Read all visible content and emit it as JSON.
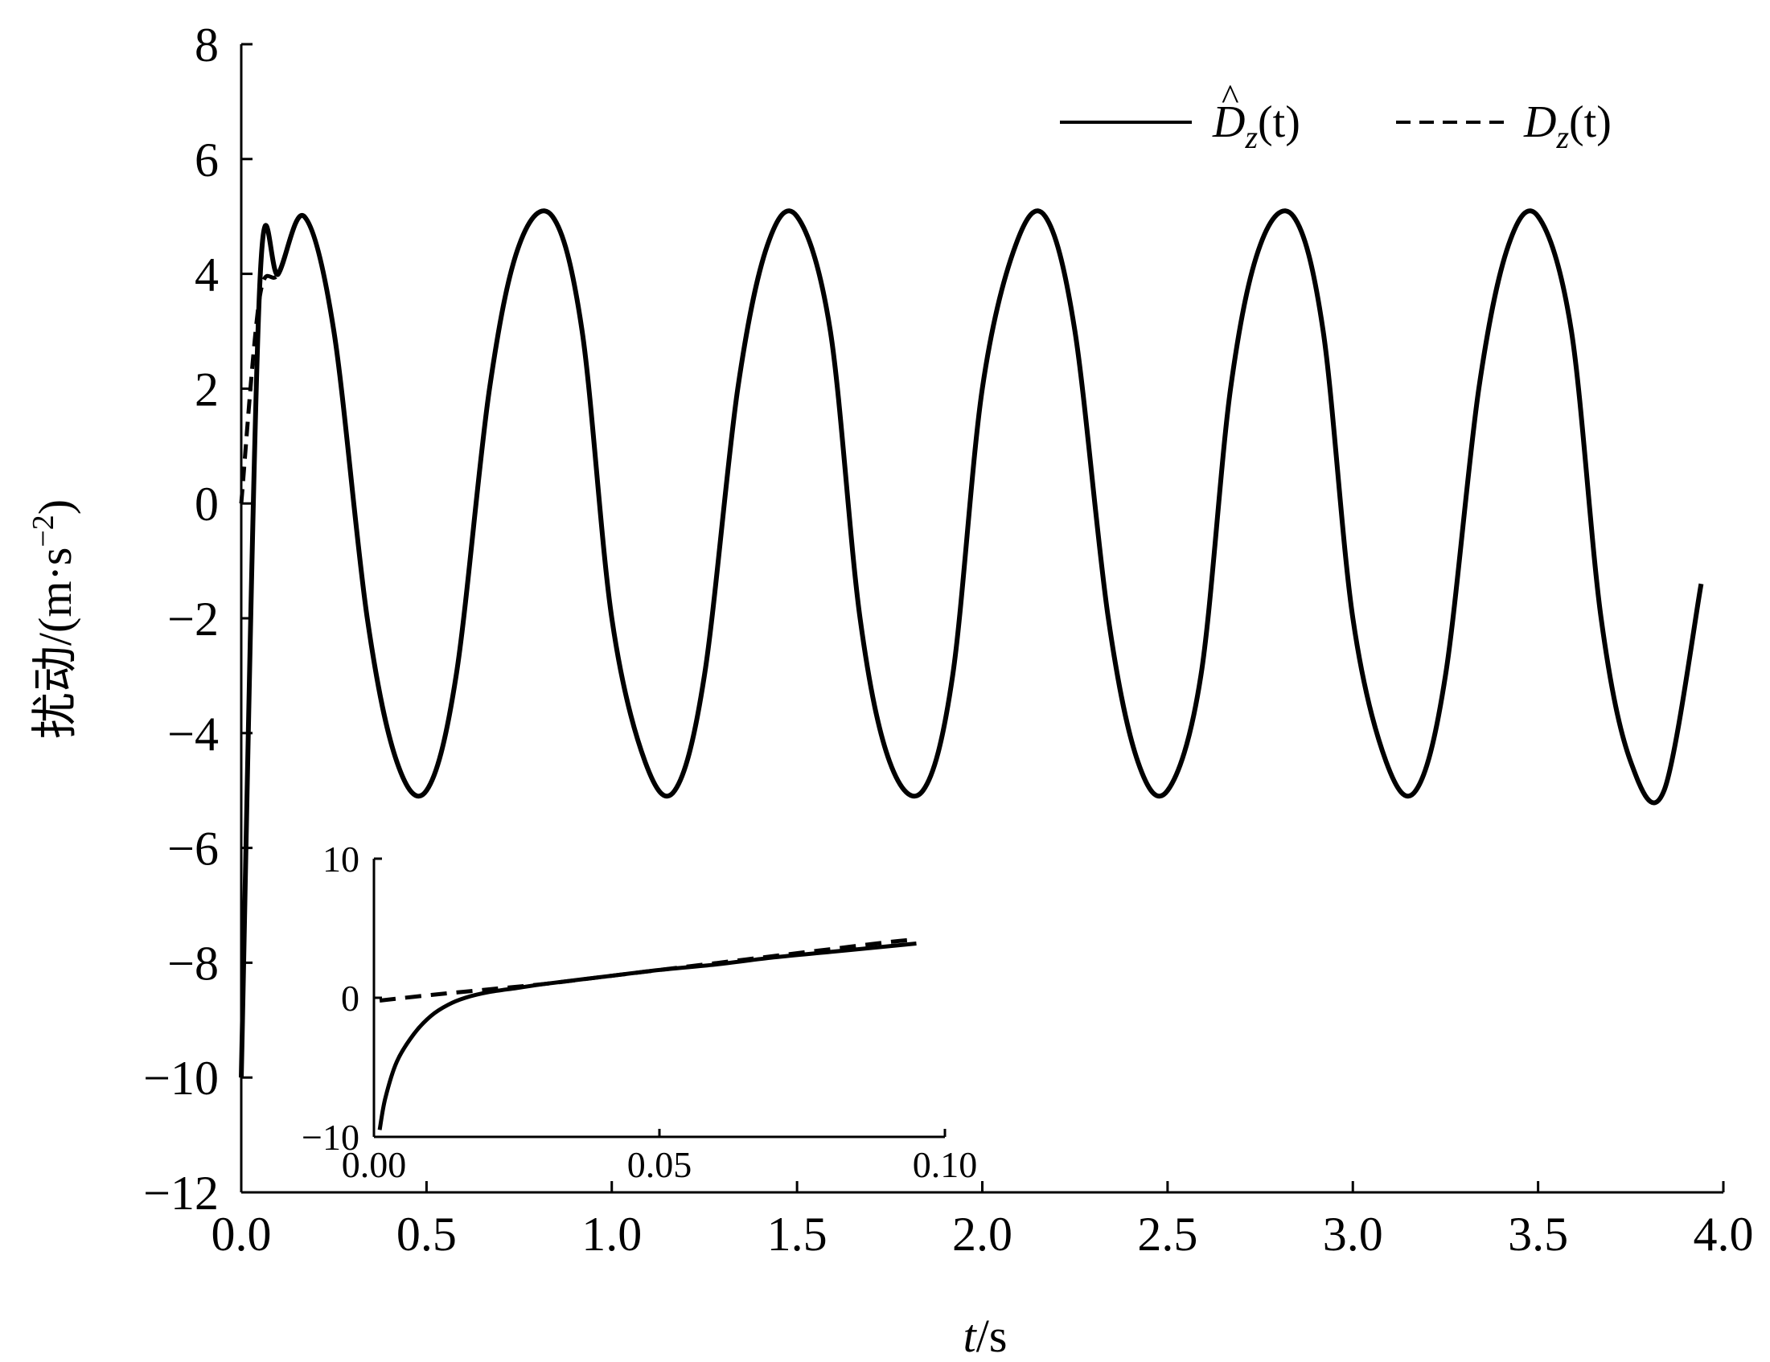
{
  "chart_data": [
    {
      "type": "line",
      "title": "",
      "xlabel_italic": "t",
      "xlabel_unit": "/s",
      "ylabel": "扰动/(m·s",
      "ylabel_exp": "−2",
      "ylabel_close": ")",
      "xlim": [
        0.0,
        4.0
      ],
      "ylim": [
        -12,
        8
      ],
      "x_ticks": [
        0.0,
        0.5,
        1.0,
        1.5,
        2.0,
        2.5,
        3.0,
        3.5,
        4.0
      ],
      "x_tick_labels": [
        "0.0",
        "0.5",
        "1.0",
        "1.5",
        "2.0",
        "2.5",
        "3.0",
        "3.5",
        "4.0"
      ],
      "y_ticks": [
        8,
        6,
        4,
        2,
        0,
        -2,
        -4,
        -6,
        -8,
        -10,
        -12
      ],
      "y_tick_labels": [
        "8",
        "6",
        "4",
        "2",
        "0",
        "−2",
        "−4",
        "−6",
        "−8",
        "−10",
        "−12"
      ],
      "grid": false,
      "legend_position": "top-right",
      "series": [
        {
          "name": "D̂z(t)",
          "name_letter": "D",
          "name_hat": "^",
          "name_sub": "z",
          "name_arg": "(t)",
          "style": "solid",
          "color": "#000000",
          "x": [
            0.0,
            0.05,
            0.1,
            0.17,
            0.25,
            0.34,
            0.42,
            0.5,
            0.58,
            0.67,
            0.75,
            0.84,
            0.92,
            1.0,
            1.09,
            1.17,
            1.25,
            1.34,
            1.42,
            1.5,
            1.59,
            1.67,
            1.75,
            1.84,
            1.92,
            2.0,
            2.09,
            2.17,
            2.25,
            2.34,
            2.42,
            2.5,
            2.59,
            2.67,
            2.75,
            2.84,
            2.92,
            3.0,
            3.09,
            3.17,
            3.25,
            3.34,
            3.42,
            3.5,
            3.59,
            3.67,
            3.75,
            3.84,
            3.94
          ],
          "y": [
            -10.0,
            3.8,
            4.0,
            5.0,
            3.0,
            -2.0,
            -4.5,
            -5.0,
            -3.0,
            2.0,
            4.5,
            5.0,
            3.0,
            -2.0,
            -4.5,
            -5.0,
            -3.0,
            2.0,
            4.5,
            5.0,
            3.0,
            -2.0,
            -4.5,
            -5.0,
            -3.0,
            2.0,
            4.5,
            5.0,
            3.0,
            -2.0,
            -4.5,
            -5.0,
            -3.0,
            2.0,
            4.5,
            5.0,
            3.0,
            -2.0,
            -4.5,
            -5.0,
            -3.0,
            2.0,
            4.5,
            5.0,
            3.0,
            -2.0,
            -4.5,
            -5.0,
            -1.4
          ]
        },
        {
          "name": "Dz(t)",
          "name_letter": "D",
          "name_sub": "z",
          "name_arg": "(t)",
          "style": "dashed",
          "color": "#000000",
          "x": [
            0.0,
            0.05,
            0.1,
            0.17,
            0.25,
            0.34,
            0.42,
            0.5,
            0.58,
            0.67,
            0.75,
            0.84,
            0.92,
            1.0,
            1.09,
            1.17,
            1.25,
            1.34,
            1.42,
            1.5,
            1.59,
            1.67,
            1.75,
            1.84,
            1.92,
            2.0,
            2.09,
            2.17,
            2.25,
            2.34,
            2.42,
            2.5,
            2.59,
            2.67,
            2.75,
            2.84,
            2.92,
            3.0,
            3.09,
            3.17,
            3.25,
            3.34,
            3.42,
            3.5,
            3.59,
            3.67,
            3.75,
            3.84,
            3.94
          ],
          "y": [
            0.0,
            3.6,
            4.0,
            5.0,
            3.0,
            -2.0,
            -4.5,
            -5.0,
            -3.0,
            2.0,
            4.5,
            5.0,
            3.0,
            -2.0,
            -4.5,
            -5.0,
            -3.0,
            2.0,
            4.5,
            5.0,
            3.0,
            -2.0,
            -4.5,
            -5.0,
            -3.0,
            2.0,
            4.5,
            5.0,
            3.0,
            -2.0,
            -4.5,
            -5.0,
            -3.0,
            2.0,
            4.5,
            5.0,
            3.0,
            -2.0,
            -4.5,
            -5.0,
            -3.0,
            2.0,
            4.5,
            5.0,
            3.0,
            -2.0,
            -4.5,
            -5.0,
            -1.4
          ]
        }
      ]
    },
    {
      "type": "line",
      "title": "",
      "inset": true,
      "xlim": [
        0.0,
        0.1
      ],
      "ylim": [
        -10,
        10
      ],
      "x_ticks": [
        0.0,
        0.05,
        0.1
      ],
      "x_tick_labels": [
        "0.00",
        "0.05",
        "0.10"
      ],
      "y_ticks": [
        10,
        0,
        -10
      ],
      "y_tick_labels": [
        "10",
        "0",
        "−10"
      ],
      "grid": false,
      "series": [
        {
          "style": "solid",
          "color": "#000000",
          "x": [
            0.001,
            0.002,
            0.004,
            0.007,
            0.01,
            0.013,
            0.016,
            0.02,
            0.025,
            0.03,
            0.04,
            0.05,
            0.06,
            0.07,
            0.08,
            0.09,
            0.095
          ],
          "y": [
            -9.5,
            -7.2,
            -4.6,
            -2.6,
            -1.3,
            -0.5,
            0.0,
            0.4,
            0.7,
            1.0,
            1.5,
            2.0,
            2.4,
            2.9,
            3.3,
            3.7,
            3.9
          ]
        },
        {
          "style": "dashed",
          "color": "#000000",
          "x": [
            0.001,
            0.01,
            0.02,
            0.03,
            0.04,
            0.05,
            0.06,
            0.07,
            0.08,
            0.09,
            0.095
          ],
          "y": [
            -0.2,
            0.2,
            0.6,
            1.0,
            1.5,
            2.0,
            2.5,
            3.0,
            3.5,
            4.0,
            4.2
          ]
        }
      ]
    }
  ]
}
